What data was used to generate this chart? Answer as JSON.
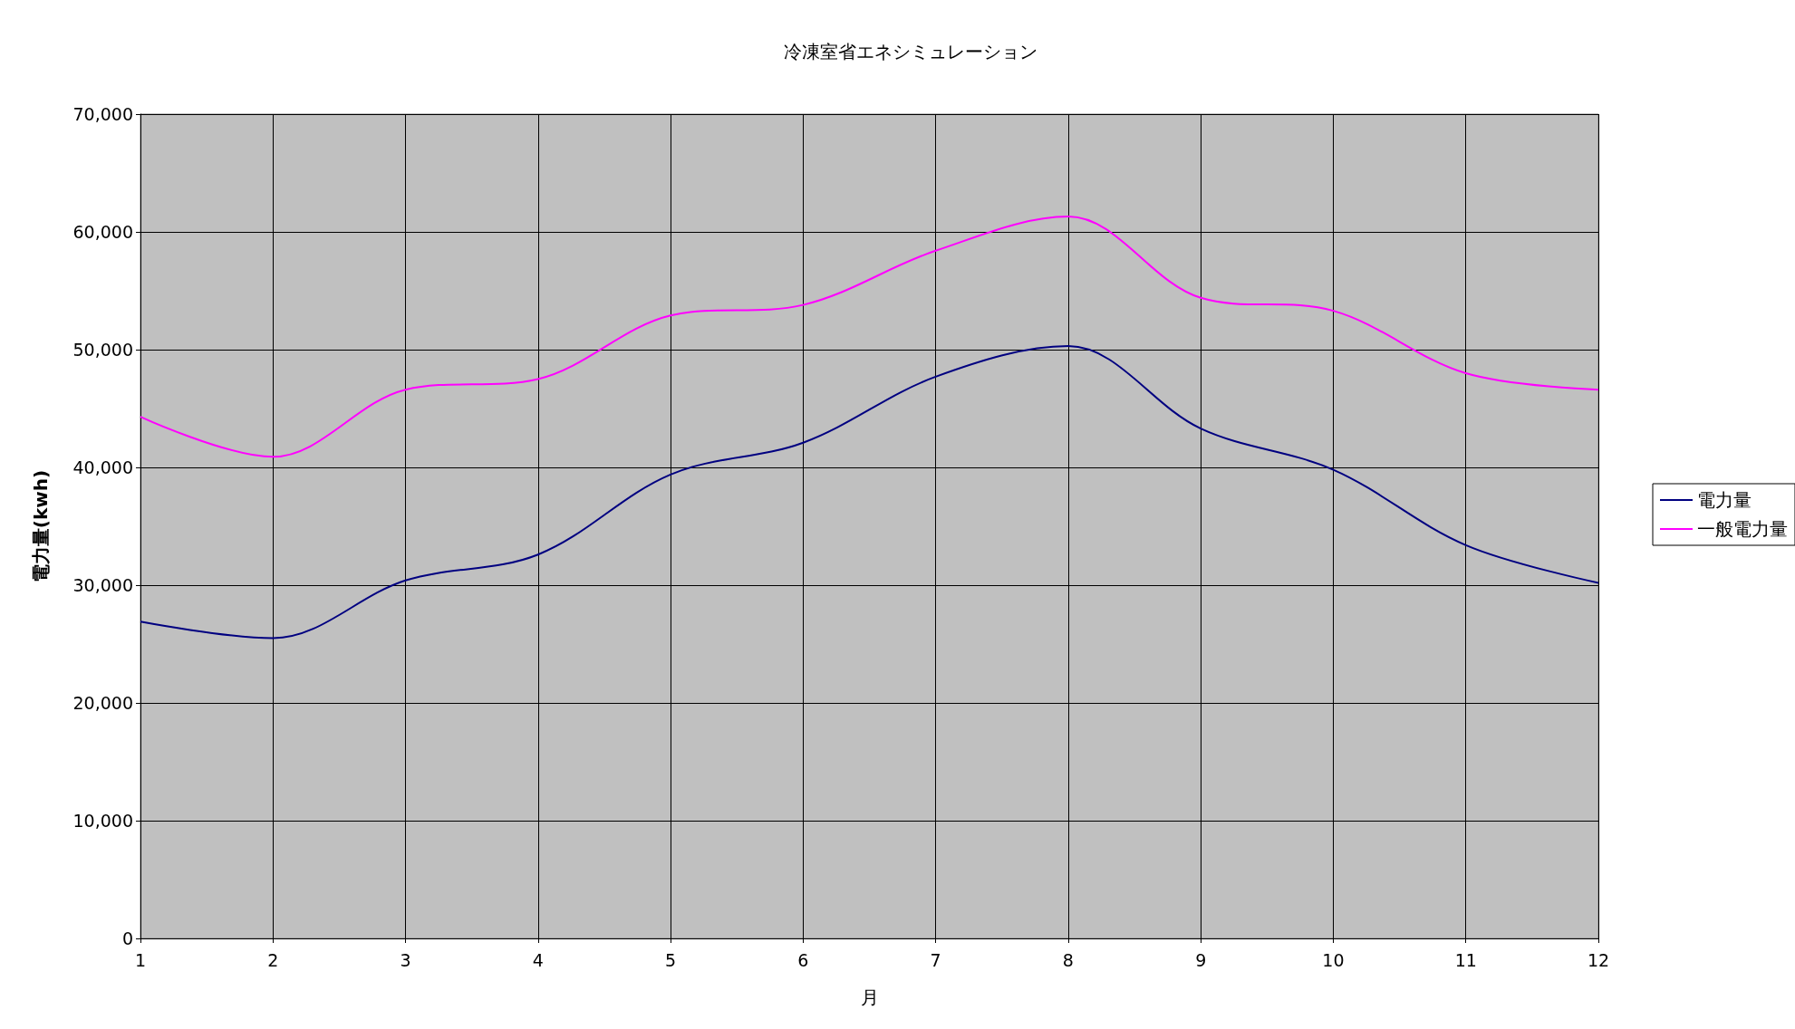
{
  "chart_data": {
    "type": "line",
    "title": "冷凍室省エネシミュレーション",
    "xlabel": "月",
    "ylabel": "電力量(kwh)",
    "x": [
      1,
      2,
      3,
      4,
      5,
      6,
      7,
      8,
      9,
      10,
      11,
      12
    ],
    "series": [
      {
        "name": "電力量",
        "color": "#000080",
        "values": [
          26900,
          25500,
          30400,
          32600,
          39400,
          42100,
          47700,
          50300,
          43300,
          39800,
          33400,
          30200
        ]
      },
      {
        "name": "一般電力量",
        "color": "#ff00ff",
        "values": [
          44300,
          40900,
          46600,
          47500,
          52900,
          53800,
          58400,
          61300,
          54400,
          53300,
          48000,
          46600
        ]
      }
    ],
    "xlim": [
      1,
      12
    ],
    "xticks": [
      1,
      2,
      3,
      4,
      5,
      6,
      7,
      8,
      9,
      10,
      11,
      12
    ],
    "ylim": [
      0,
      70000
    ],
    "yticks": [
      0,
      {
        "value": 10000,
        "label": "10,000"
      },
      {
        "value": 20000,
        "label": "20,000"
      },
      {
        "value": 30000,
        "label": "30,000"
      },
      {
        "value": 40000,
        "label": "40,000"
      },
      {
        "value": 50000,
        "label": "50,000"
      },
      {
        "value": 60000,
        "label": "60,000"
      },
      {
        "value": 70000,
        "label": "70,000"
      }
    ],
    "grid": true,
    "legend": "right",
    "marker": "none",
    "line_style": "solid"
  }
}
